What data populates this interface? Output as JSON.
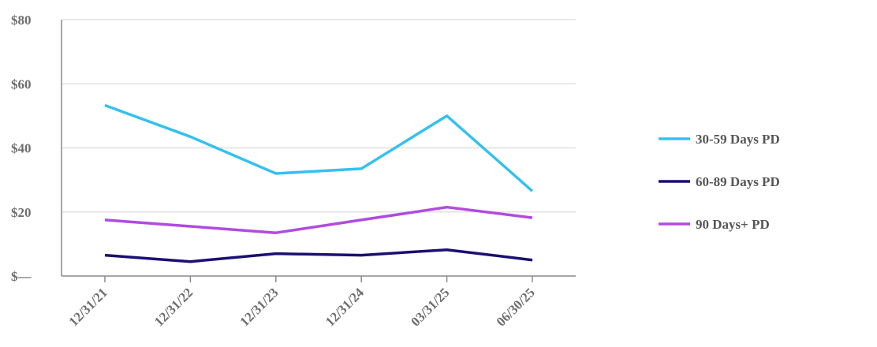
{
  "chart_data": {
    "type": "line",
    "categories": [
      "12/31/21",
      "12/31/22",
      "12/31/23",
      "12/31/24",
      "03/31/25",
      "06/30/25"
    ],
    "series": [
      {
        "name": "30-59 Days PD",
        "color": "#35c1ee",
        "values": [
          53.3,
          43.5,
          32,
          33.5,
          50,
          26.5
        ]
      },
      {
        "name": "60-89 Days PD",
        "color": "#1b0f73",
        "values": [
          6.5,
          4.5,
          7,
          6.5,
          8.2,
          5
        ]
      },
      {
        "name": "90 Days+ PD",
        "color": "#b04be0",
        "values": [
          17.5,
          15.5,
          13.5,
          17.5,
          21.5,
          18.2
        ]
      }
    ],
    "y_ticks": [
      {
        "value": 0,
        "label": "$—"
      },
      {
        "value": 20,
        "label": "$20"
      },
      {
        "value": 40,
        "label": "$40"
      },
      {
        "value": 60,
        "label": "$60"
      },
      {
        "value": 80,
        "label": "$80"
      }
    ],
    "ylim": [
      0,
      80
    ],
    "grid": true,
    "legend_position": "right",
    "title": "",
    "xlabel": "",
    "ylabel": ""
  }
}
